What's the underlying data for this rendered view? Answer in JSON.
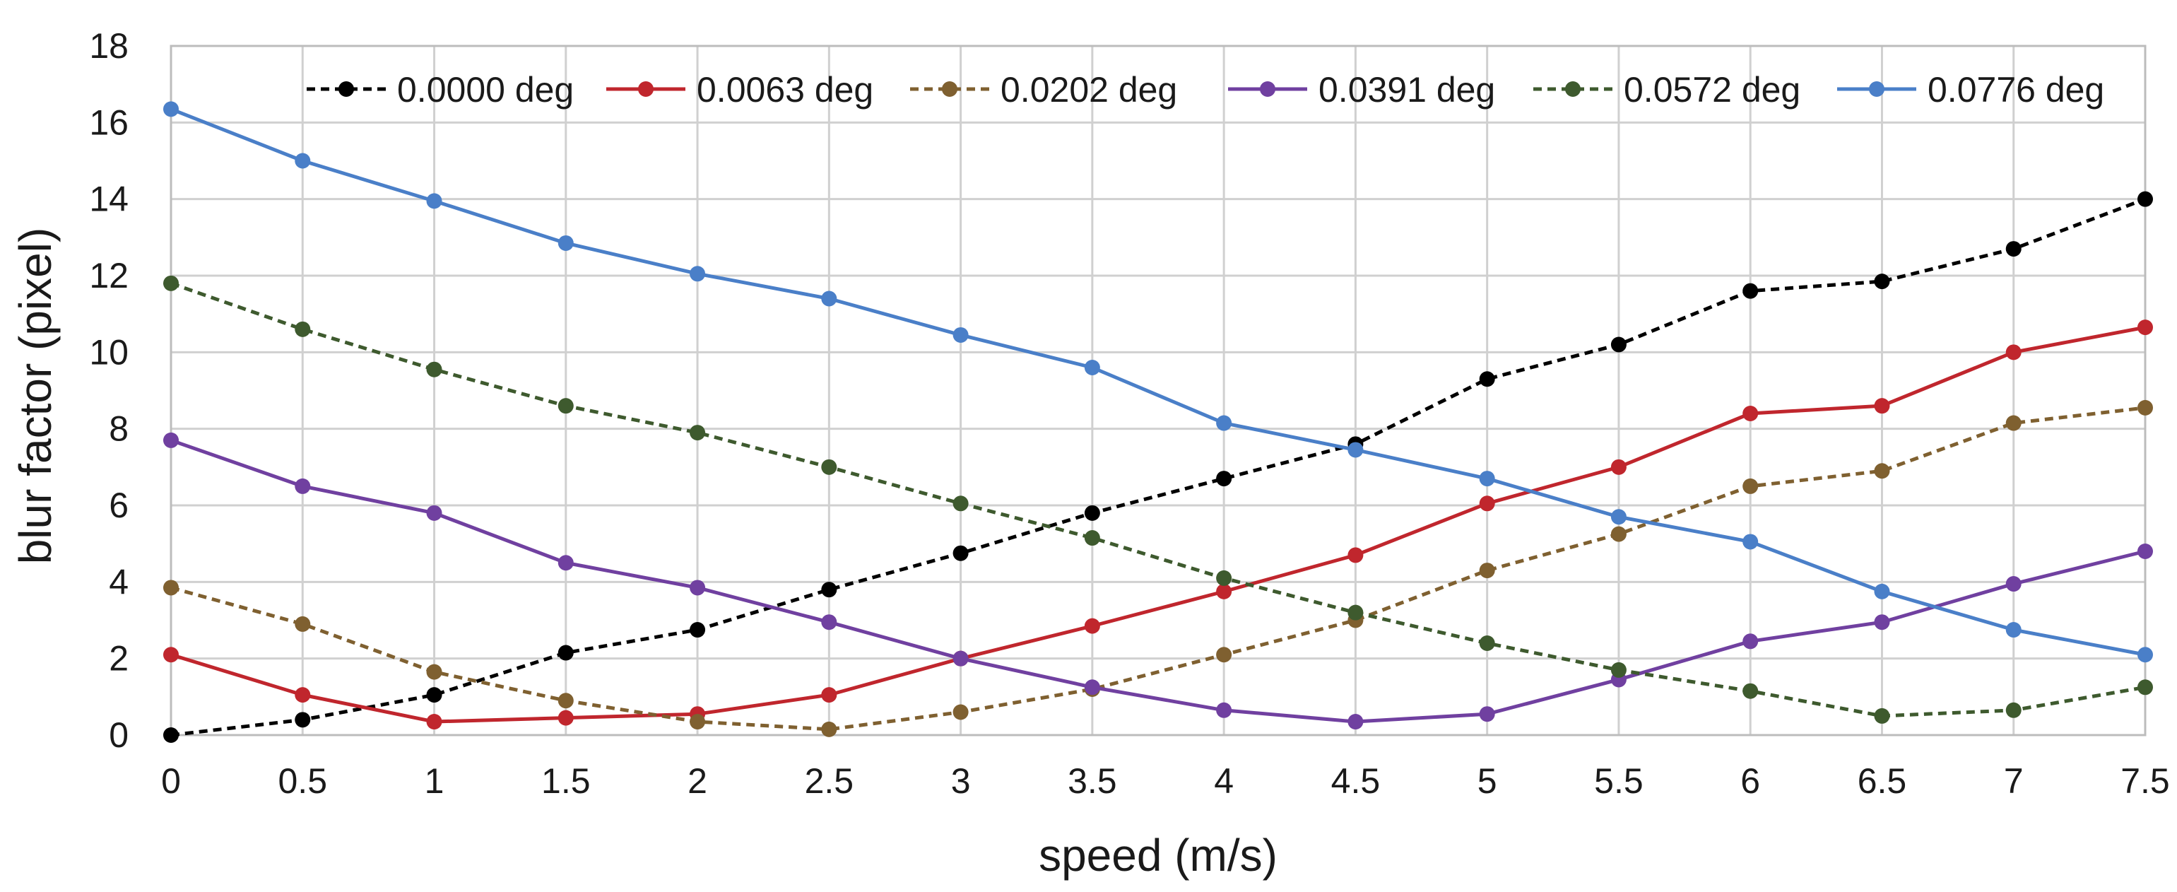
{
  "chart_data": {
    "type": "line",
    "title": "",
    "xlabel": "speed (m/s)",
    "ylabel": "blur factor (pixel)",
    "xlim": [
      0,
      7.5
    ],
    "ylim": [
      0,
      18
    ],
    "xticks": [
      0,
      0.5,
      1,
      1.5,
      2,
      2.5,
      3,
      3.5,
      4,
      4.5,
      5,
      5.5,
      6,
      6.5,
      7,
      7.5
    ],
    "xtick_labels": [
      "0",
      "0.5",
      "1",
      "1.5",
      "2",
      "2.5",
      "3",
      "3.5",
      "4",
      "4.5",
      "5",
      "5.5",
      "6",
      "6.5",
      "7",
      "7.5"
    ],
    "yticks": [
      0,
      2,
      4,
      6,
      8,
      10,
      12,
      14,
      16,
      18
    ],
    "ytick_labels": [
      "0",
      "2",
      "4",
      "6",
      "8",
      "10",
      "12",
      "14",
      "16",
      "18"
    ],
    "grid": true,
    "legend_position": "top",
    "x": [
      0,
      0.5,
      1,
      1.5,
      2,
      2.5,
      3,
      3.5,
      4,
      4.5,
      5,
      5.5,
      6,
      6.5,
      7,
      7.5
    ],
    "series": [
      {
        "name": "0.0000 deg",
        "color": "#000000",
        "dashed": true,
        "values": [
          0,
          0.4,
          1.05,
          2.15,
          2.75,
          3.8,
          4.75,
          5.8,
          6.7,
          7.6,
          9.3,
          10.2,
          11.6,
          11.85,
          12.7,
          14.0
        ]
      },
      {
        "name": "0.0063 deg",
        "color": "#c0262d",
        "dashed": false,
        "values": [
          2.1,
          1.05,
          0.35,
          0.45,
          0.55,
          1.05,
          2.0,
          2.85,
          3.75,
          4.7,
          6.05,
          7.0,
          8.4,
          8.6,
          10.0,
          10.65
        ]
      },
      {
        "name": "0.0202 deg",
        "color": "#7f6030",
        "dashed": true,
        "values": [
          3.85,
          2.9,
          1.65,
          0.9,
          0.35,
          0.15,
          0.6,
          1.2,
          2.1,
          3.0,
          4.3,
          5.25,
          6.5,
          6.9,
          8.15,
          8.55
        ]
      },
      {
        "name": "0.0391 deg",
        "color": "#7040a0",
        "dashed": false,
        "values": [
          7.7,
          6.5,
          5.8,
          4.5,
          3.85,
          2.95,
          2.0,
          1.25,
          0.65,
          0.35,
          0.55,
          1.45,
          2.45,
          2.95,
          3.95,
          4.8
        ]
      },
      {
        "name": "0.0572 deg",
        "color": "#3e5a2e",
        "dashed": true,
        "values": [
          11.8,
          10.6,
          9.55,
          8.6,
          7.9,
          7.0,
          6.05,
          5.15,
          4.1,
          3.2,
          2.4,
          1.7,
          1.15,
          0.5,
          0.65,
          1.25
        ]
      },
      {
        "name": "0.0776 deg",
        "color": "#4a7fc8",
        "dashed": false,
        "values": [
          16.35,
          15.0,
          13.95,
          12.85,
          12.05,
          11.4,
          10.45,
          9.6,
          8.15,
          7.45,
          6.7,
          5.7,
          5.05,
          3.75,
          2.75,
          2.1
        ]
      }
    ]
  }
}
